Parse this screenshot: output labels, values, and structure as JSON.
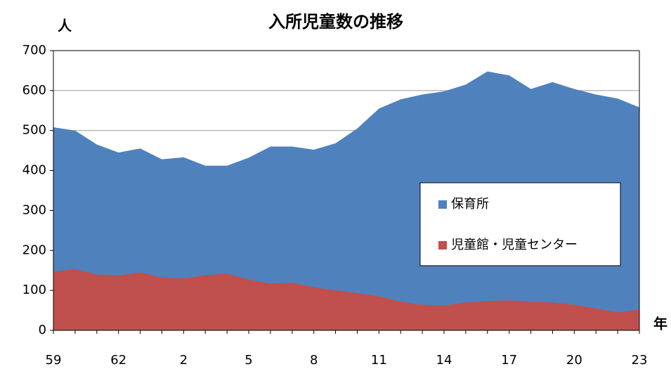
{
  "chart_data": {
    "type": "area",
    "title": "入所児童数の推移",
    "y_label": "人",
    "x_label": "年",
    "categories": [
      "59",
      null,
      null,
      "62",
      null,
      null,
      "2",
      null,
      null,
      "5",
      null,
      null,
      "8",
      null,
      null,
      "11",
      null,
      null,
      "14",
      null,
      null,
      "17",
      null,
      null,
      "20",
      null,
      null,
      "23"
    ],
    "series": [
      {
        "name": "保育所",
        "color": "#4f81bd",
        "values": [
          508,
          500,
          465,
          445,
          455,
          428,
          433,
          412,
          412,
          432,
          460,
          460,
          452,
          468,
          505,
          555,
          578,
          590,
          598,
          615,
          648,
          638,
          604,
          621,
          604,
          590,
          580,
          558
        ]
      },
      {
        "name": "児童館・児童センター",
        "color": "#c0504d",
        "values": [
          147,
          153,
          140,
          137,
          145,
          132,
          130,
          138,
          142,
          127,
          117,
          119,
          108,
          100,
          93,
          85,
          72,
          64,
          62,
          70,
          73,
          75,
          71,
          70,
          64,
          55,
          45,
          52
        ]
      }
    ],
    "ylim": [
      0,
      700
    ],
    "yticks": [
      0,
      100,
      200,
      300,
      400,
      500,
      600,
      700
    ],
    "grid": true,
    "legend": "right"
  }
}
